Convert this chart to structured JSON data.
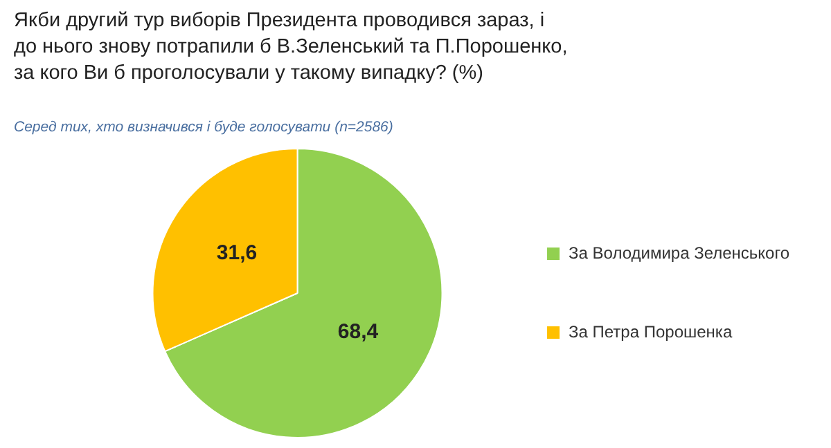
{
  "chart_data": {
    "type": "pie",
    "title": "Якби другий тур виборів Президента проводився зараз, і до нього знову потрапили б В.Зеленський та П.Порошенко, за кого Ви б проголосували у такому випадку? (%)",
    "subtitle": "Серед тих, хто визначився і буде голосувати (n=2586)",
    "categories": [
      "За Володимира Зеленського",
      "За Петра Порошенка"
    ],
    "values": [
      68.4,
      31.6
    ],
    "colors": [
      "#92d050",
      "#ffc000"
    ],
    "value_labels": [
      "68,4",
      "31,6"
    ],
    "legend": "right"
  }
}
